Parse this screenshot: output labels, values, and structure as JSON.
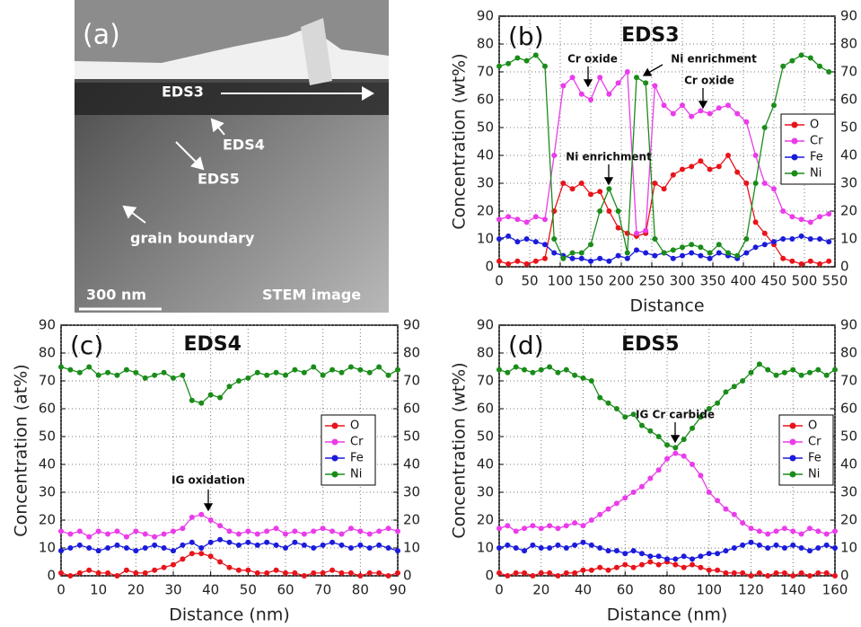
{
  "image_panel": {
    "panel_label": "(a)",
    "labels": [
      "EDS3",
      "EDS4",
      "EDS5",
      "grain boundary"
    ],
    "scale_bar": "300 nm",
    "caption": "STEM image"
  },
  "chart_data": [
    {
      "type": "line",
      "panel_label": "(b)",
      "title": "EDS3",
      "x_label": "Distance",
      "y_label": "Concentration (wt%)",
      "y2_label": "",
      "x": [
        0,
        15,
        30,
        45,
        60,
        75,
        90,
        105,
        120,
        135,
        150,
        165,
        180,
        195,
        210,
        225,
        240,
        255,
        270,
        285,
        300,
        315,
        330,
        345,
        360,
        375,
        390,
        405,
        420,
        435,
        450,
        465,
        480,
        495,
        510,
        525,
        540
      ],
      "series": [
        {
          "name": "O",
          "color": "#e8141b",
          "values": [
            2,
            1,
            2,
            1,
            2,
            3,
            20,
            30,
            28,
            30,
            26,
            27,
            20,
            14,
            12,
            11,
            12,
            30,
            28,
            33,
            35,
            36,
            38,
            35,
            36,
            40,
            34,
            30,
            16,
            12,
            8,
            3,
            2,
            1,
            2,
            1,
            2
          ]
        },
        {
          "name": "Cr",
          "color": "#ea3cea",
          "values": [
            17,
            18,
            17,
            16,
            18,
            17,
            40,
            65,
            68,
            62,
            60,
            68,
            62,
            66,
            70,
            12,
            13,
            65,
            58,
            55,
            58,
            54,
            56,
            55,
            57,
            58,
            55,
            52,
            40,
            30,
            28,
            20,
            18,
            17,
            16,
            18,
            19
          ]
        },
        {
          "name": "Fe",
          "color": "#1b1bdb",
          "values": [
            10,
            11,
            9,
            10,
            9,
            8,
            5,
            4,
            3,
            3,
            2,
            3,
            2,
            4,
            3,
            6,
            5,
            4,
            5,
            3,
            4,
            5,
            4,
            3,
            5,
            4,
            3,
            5,
            7,
            8,
            9,
            10,
            10,
            11,
            10,
            10,
            9
          ]
        },
        {
          "name": "Ni",
          "color": "#1a8c1a",
          "values": [
            72,
            73,
            75,
            74,
            76,
            72,
            10,
            3,
            5,
            5,
            8,
            20,
            28,
            20,
            5,
            68,
            66,
            10,
            5,
            6,
            7,
            8,
            7,
            5,
            8,
            5,
            4,
            10,
            30,
            50,
            58,
            72,
            74,
            76,
            75,
            72,
            70
          ]
        }
      ],
      "xlim": [
        0,
        550
      ],
      "xticks": [
        0,
        50,
        100,
        150,
        200,
        250,
        300,
        350,
        400,
        450,
        500,
        550
      ],
      "ylim": [
        0,
        90
      ],
      "yticks": [
        0,
        10,
        20,
        30,
        40,
        50,
        60,
        70,
        80,
        90
      ],
      "y2lim": [
        0,
        90
      ],
      "y2ticks": [
        0,
        10,
        20,
        30,
        40,
        50,
        60,
        70,
        80,
        90
      ],
      "grid": true,
      "legend": "right",
      "annotations": [
        "Cr oxide",
        "Ni enrichment",
        "Cr oxide",
        "Ni enrichment"
      ]
    },
    {
      "type": "line",
      "panel_label": "(c)",
      "title": "EDS4",
      "x_label": "Distance (nm)",
      "y_label": "Concentration (at%)",
      "x": [
        0,
        2.5,
        5,
        7.5,
        10,
        12.5,
        15,
        17.5,
        20,
        22.5,
        25,
        27.5,
        30,
        32.5,
        35,
        37.5,
        40,
        42.5,
        45,
        47.5,
        50,
        52.5,
        55,
        57.5,
        60,
        62.5,
        65,
        67.5,
        70,
        72.5,
        75,
        77.5,
        80,
        82.5,
        85,
        87.5,
        90
      ],
      "series": [
        {
          "name": "O",
          "color": "#e8141b",
          "values": [
            1,
            0,
            1,
            2,
            1,
            1,
            0,
            2,
            1,
            1,
            2,
            3,
            4,
            6,
            8,
            8,
            7,
            5,
            3,
            2,
            2,
            1,
            1,
            2,
            1,
            1,
            0,
            1,
            1,
            2,
            1,
            1,
            0,
            1,
            1,
            0,
            1
          ]
        },
        {
          "name": "Cr",
          "color": "#ea3cea",
          "values": [
            16,
            15,
            16,
            14,
            16,
            15,
            16,
            14,
            16,
            15,
            14,
            15,
            16,
            17,
            21,
            22,
            20,
            18,
            16,
            15,
            16,
            15,
            16,
            17,
            15,
            16,
            15,
            16,
            17,
            16,
            15,
            17,
            16,
            15,
            16,
            17,
            16
          ]
        },
        {
          "name": "Fe",
          "color": "#1b1bdb",
          "values": [
            9,
            10,
            11,
            10,
            9,
            10,
            11,
            10,
            9,
            10,
            11,
            10,
            9,
            11,
            12,
            10,
            12,
            13,
            12,
            11,
            12,
            11,
            12,
            11,
            10,
            12,
            11,
            10,
            11,
            12,
            11,
            10,
            11,
            10,
            11,
            10,
            9
          ]
        },
        {
          "name": "Ni",
          "color": "#1a8c1a",
          "values": [
            75,
            74,
            73,
            75,
            72,
            73,
            72,
            74,
            73,
            71,
            72,
            73,
            71,
            72,
            63,
            62,
            65,
            64,
            68,
            70,
            71,
            73,
            72,
            73,
            72,
            74,
            73,
            75,
            72,
            74,
            73,
            75,
            74,
            73,
            75,
            72,
            74
          ]
        }
      ],
      "xlim": [
        0,
        90
      ],
      "xticks": [
        0,
        10,
        20,
        30,
        40,
        50,
        60,
        70,
        80,
        90
      ],
      "ylim": [
        0,
        90
      ],
      "yticks": [
        0,
        10,
        20,
        30,
        40,
        50,
        60,
        70,
        80,
        90
      ],
      "y2lim": [
        0,
        90
      ],
      "y2ticks": [
        0,
        10,
        20,
        30,
        40,
        50,
        60,
        70,
        80,
        90
      ],
      "grid": true,
      "legend": "right",
      "annotations": [
        "IG oxidation"
      ]
    },
    {
      "type": "line",
      "panel_label": "(d)",
      "title": "EDS5",
      "x_label": "Distance (nm)",
      "y_label": "Concentration (wt%)",
      "x": [
        0,
        4,
        8,
        12,
        16,
        20,
        24,
        28,
        32,
        36,
        40,
        44,
        48,
        52,
        56,
        60,
        64,
        68,
        72,
        76,
        80,
        84,
        88,
        92,
        96,
        100,
        104,
        108,
        112,
        116,
        120,
        124,
        128,
        132,
        136,
        140,
        144,
        148,
        152,
        156,
        160
      ],
      "series": [
        {
          "name": "O",
          "color": "#e8141b",
          "values": [
            1,
            0,
            1,
            1,
            0,
            1,
            1,
            0,
            1,
            1,
            2,
            2,
            3,
            2,
            3,
            4,
            3,
            4,
            5,
            4,
            5,
            4,
            3,
            4,
            3,
            2,
            2,
            1,
            1,
            1,
            0,
            1,
            0,
            1,
            1,
            0,
            1,
            0,
            1,
            1,
            0
          ]
        },
        {
          "name": "Cr",
          "color": "#ea3cea",
          "values": [
            17,
            18,
            16,
            17,
            18,
            17,
            18,
            17,
            18,
            19,
            18,
            20,
            22,
            24,
            26,
            28,
            30,
            32,
            35,
            38,
            42,
            44,
            43,
            40,
            36,
            30,
            27,
            24,
            22,
            19,
            17,
            16,
            15,
            16,
            17,
            16,
            15,
            17,
            16,
            15,
            16
          ]
        },
        {
          "name": "Fe",
          "color": "#1b1bdb",
          "values": [
            10,
            11,
            10,
            9,
            11,
            10,
            10,
            11,
            10,
            11,
            12,
            11,
            10,
            9,
            9,
            8,
            9,
            8,
            7,
            7,
            6,
            6,
            7,
            6,
            7,
            8,
            8,
            9,
            10,
            11,
            12,
            11,
            10,
            11,
            10,
            11,
            10,
            9,
            10,
            11,
            10
          ]
        },
        {
          "name": "Ni",
          "color": "#1a8c1a",
          "values": [
            74,
            73,
            75,
            74,
            73,
            74,
            75,
            73,
            74,
            72,
            71,
            70,
            64,
            62,
            60,
            57,
            58,
            54,
            52,
            50,
            47,
            46,
            49,
            53,
            57,
            60,
            62,
            66,
            68,
            70,
            73,
            76,
            74,
            72,
            73,
            74,
            72,
            73,
            74,
            72,
            74
          ]
        }
      ],
      "xlim": [
        0,
        160
      ],
      "xticks": [
        0,
        20,
        40,
        60,
        80,
        100,
        120,
        140,
        160
      ],
      "ylim": [
        0,
        90
      ],
      "yticks": [
        0,
        10,
        20,
        30,
        40,
        50,
        60,
        70,
        80,
        90
      ],
      "y2lim": [
        0,
        90
      ],
      "y2ticks": [
        0,
        10,
        20,
        30,
        40,
        50,
        60,
        70,
        80,
        90
      ],
      "grid": true,
      "legend": "right",
      "annotations": [
        "IG Cr carbide"
      ]
    }
  ]
}
